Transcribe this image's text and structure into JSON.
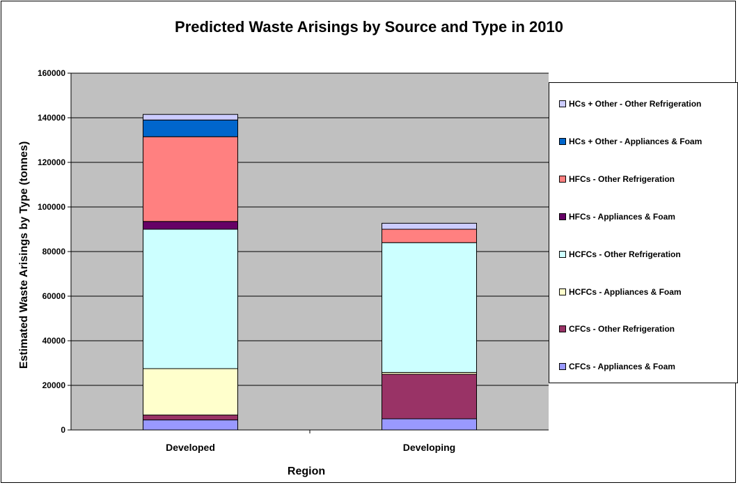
{
  "chart_data": {
    "type": "bar",
    "stacked": true,
    "title": "Predicted Waste Arisings by Source and Type in 2010",
    "xlabel": "Region",
    "ylabel": "Estimated Waste Arisings by Type (tonnes)",
    "ylim": [
      0,
      160000
    ],
    "yticks": [
      "0",
      "20000",
      "40000",
      "60000",
      "80000",
      "100000",
      "120000",
      "140000",
      "160000"
    ],
    "grid": true,
    "legend_position": "right",
    "categories": [
      "Developed",
      "Developing"
    ],
    "series": [
      {
        "name": "CFCs - Appliances & Foam",
        "color": "#9999FF",
        "values": [
          4500,
          5000
        ]
      },
      {
        "name": "CFCs - Other Refrigeration",
        "color": "#993366",
        "values": [
          2200,
          20000
        ]
      },
      {
        "name": "HCFCs - Appliances & Foam",
        "color": "#FFFFCC",
        "values": [
          20800,
          800
        ]
      },
      {
        "name": "HCFCs - Other Refrigeration",
        "color": "#CCFFFF",
        "values": [
          62500,
          58200
        ]
      },
      {
        "name": "HFCs - Appliances & Foam",
        "color": "#660066",
        "values": [
          3500,
          0
        ]
      },
      {
        "name": "HFCs - Other Refrigeration",
        "color": "#FF8080",
        "values": [
          38000,
          6000
        ]
      },
      {
        "name": "HCs + Other - Appliances & Foam",
        "color": "#0066CC",
        "values": [
          7500,
          0
        ]
      },
      {
        "name": "HCs + Other - Other Refrigeration",
        "color": "#CCCCFF",
        "values": [
          2500,
          2700
        ]
      }
    ]
  }
}
